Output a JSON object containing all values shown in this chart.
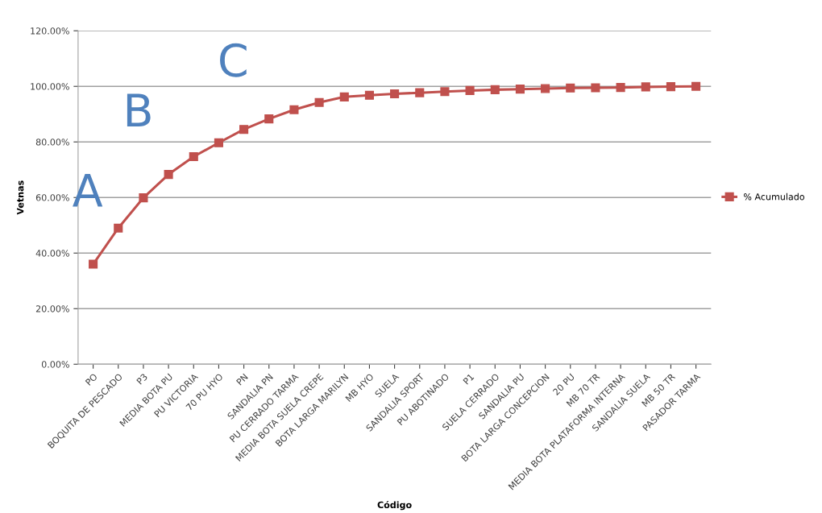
{
  "chart_data": {
    "type": "line",
    "xlabel": "Código",
    "ylabel": "Vetnas",
    "categories": [
      "PO",
      "BOQUITA DE PESCADO",
      "P3",
      "MEDIA BOTA PU",
      "PU VICTORIA",
      "70 PU HYO",
      "PN",
      "SANDALIA PN",
      "PU CERRADO TARMA",
      "MEDIA BOTA SUELA CREPE",
      "BOTA LARGA MARILYN",
      "MB HYO",
      "SUELA",
      "SANDALIA SPORT",
      "PU ABOTINADO",
      "P1",
      "SUELA CERRADO",
      "SANDALIA PU",
      "BOTA LARGA CONCEPCION",
      "20 PU",
      "MB 70 TR",
      "MEDIA BOTA PLATAFORMA INTERNA",
      "SANDALIA SUELA",
      "MB 50 TR",
      "PASADOR TARMA"
    ],
    "series": [
      {
        "name": "% Acumulado",
        "color": "#c0504d",
        "values": [
          36.0,
          49.0,
          59.9,
          68.3,
          74.7,
          79.7,
          84.5,
          88.3,
          91.6,
          94.2,
          96.2,
          96.8,
          97.3,
          97.7,
          98.1,
          98.5,
          98.8,
          99.0,
          99.2,
          99.4,
          99.5,
          99.6,
          99.8,
          99.9,
          100.0
        ]
      }
    ],
    "ylim": [
      0,
      120
    ],
    "yticks": [
      {
        "value": 0,
        "label": "0.00%"
      },
      {
        "value": 20,
        "label": "20.00%"
      },
      {
        "value": 40,
        "label": "40.00%"
      },
      {
        "value": 60,
        "label": "60.00%"
      },
      {
        "value": 80,
        "label": "80.00%"
      },
      {
        "value": 100,
        "label": "100.00%"
      },
      {
        "value": 120,
        "label": "120.00%"
      }
    ],
    "grid": "y",
    "legend": "right",
    "marker": "square",
    "line_style": "solid",
    "annotations": [
      "A",
      "B",
      "C"
    ]
  }
}
